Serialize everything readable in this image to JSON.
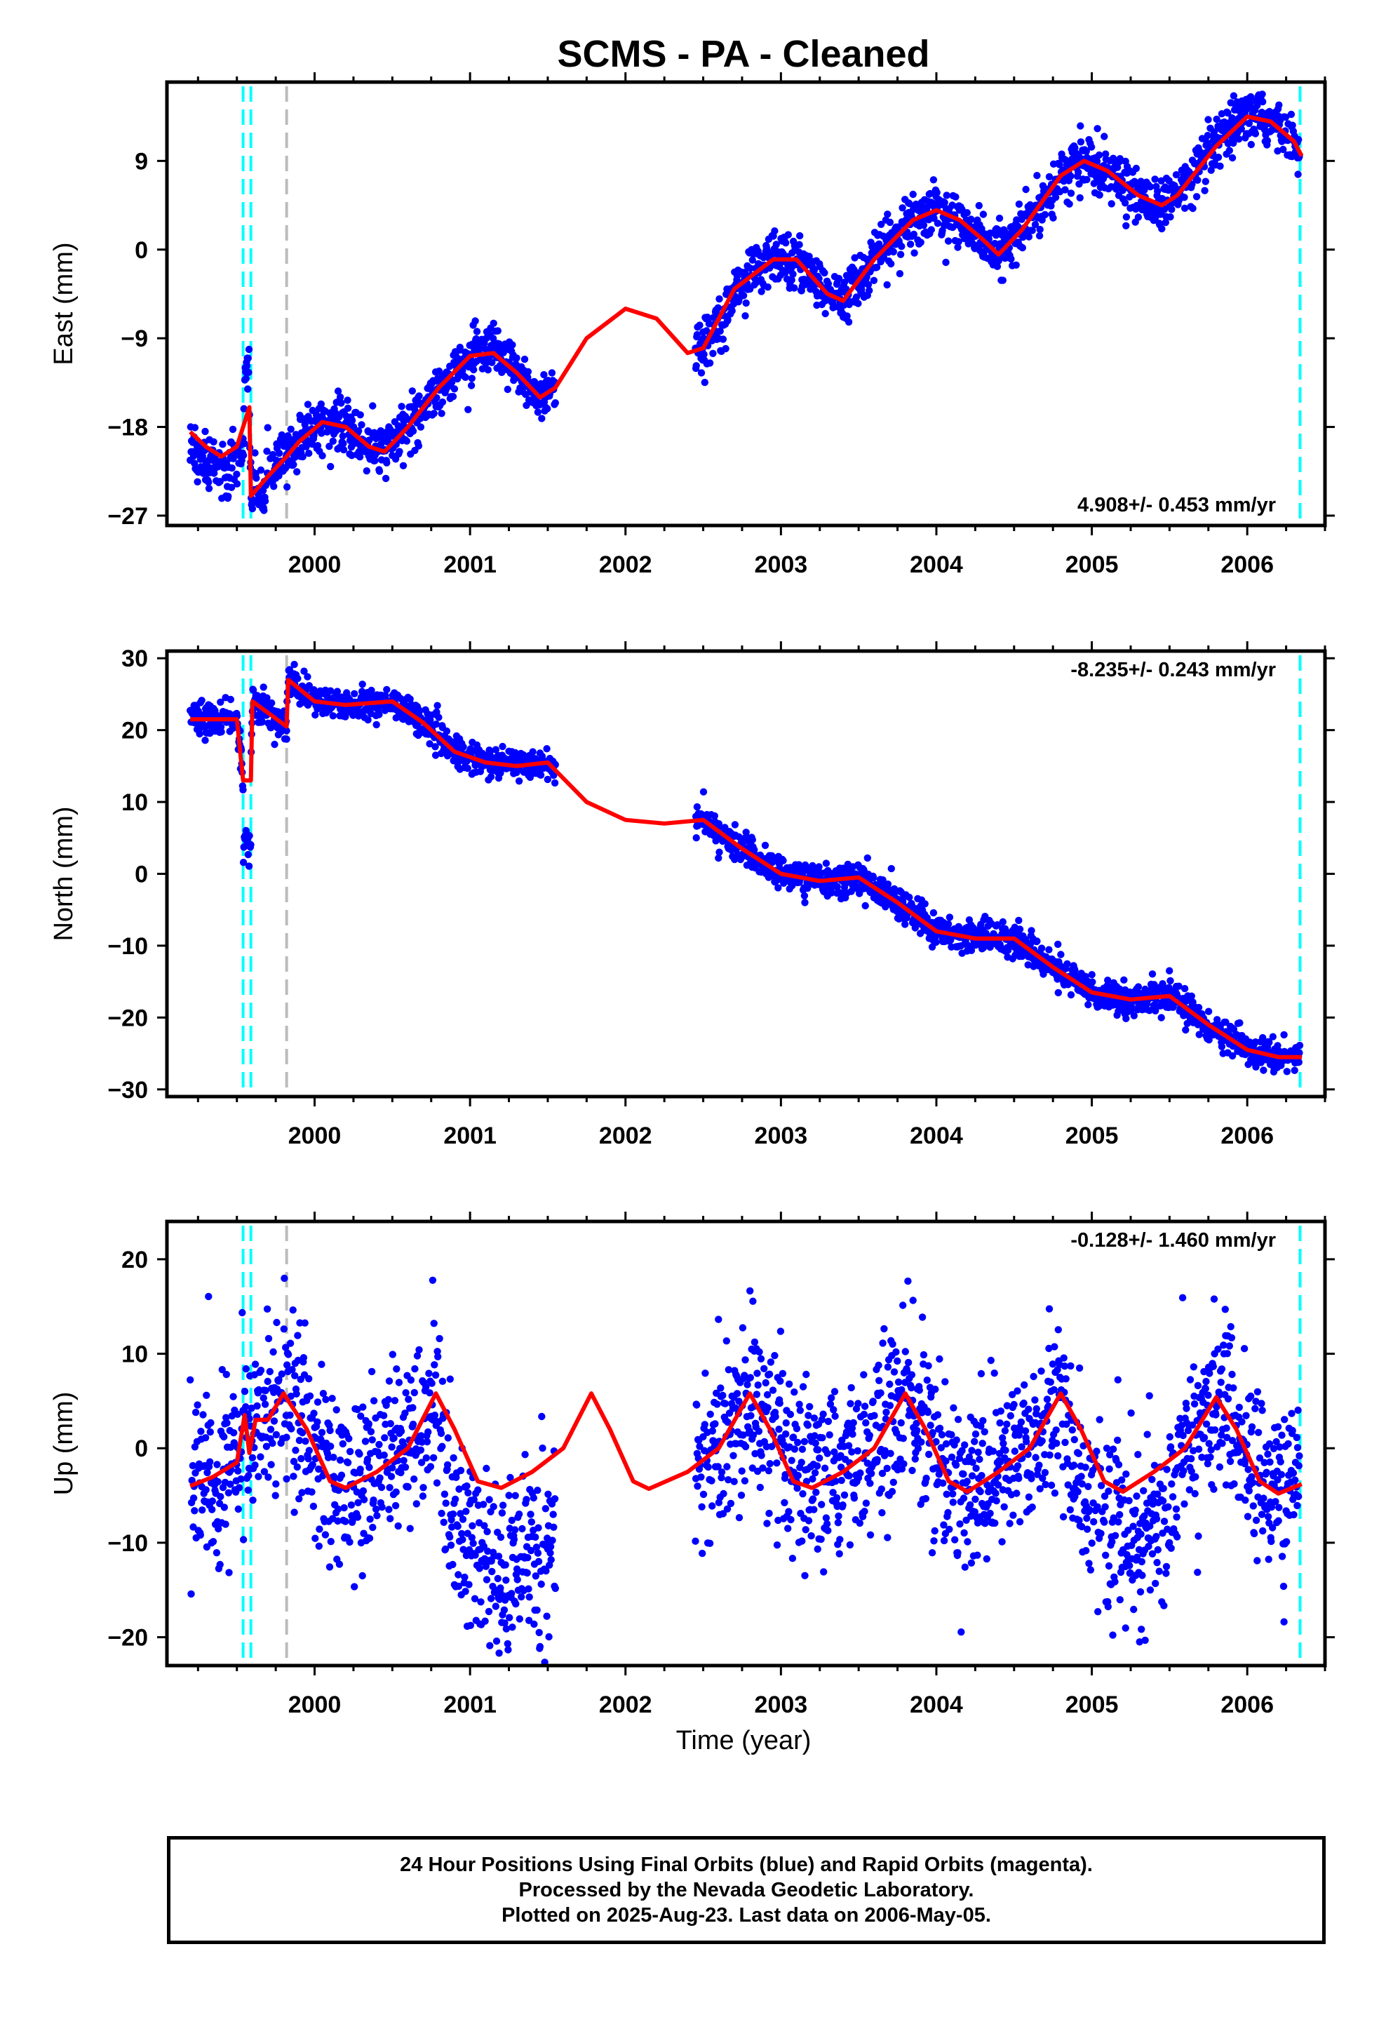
{
  "title": "SCMS  - PA - Cleaned",
  "xlabel": "Time (year)",
  "footer": {
    "line1": "24 Hour Positions Using Final Orbits (blue) and Rapid Orbits (magenta).",
    "line2": "Processed by the Nevada Geodetic Laboratory.",
    "line3": "Plotted on 2025-Aug-23. Last data on 2006-May-05."
  },
  "colors": {
    "points": "#0000ff",
    "model": "#ff0000",
    "equipment_change": "#00ffff",
    "other_event": "#bbbbbb",
    "frame": "#000000"
  },
  "chart_data": [
    {
      "type": "scatter",
      "ylabel": "East (mm)",
      "rate_label": "4.908+/- 0.453 mm/yr",
      "xlim": [
        1999.05,
        2006.5
      ],
      "ylim": [
        -28,
        17
      ],
      "x_ticks": [
        2000,
        2001,
        2002,
        2003,
        2004,
        2005,
        2006
      ],
      "y_ticks": [
        -27,
        -18,
        -9,
        0,
        9
      ],
      "data_coverage": [
        [
          1999.2,
          1999.82
        ],
        [
          1999.82,
          2001.55
        ],
        [
          2002.45,
          2006.34
        ]
      ],
      "model_line": [
        [
          1999.2,
          -18.5
        ],
        [
          1999.3,
          -20
        ],
        [
          1999.4,
          -21
        ],
        [
          1999.5,
          -20
        ],
        [
          1999.58,
          -16
        ],
        [
          1999.59,
          -25
        ],
        [
          1999.7,
          -23
        ],
        [
          1999.82,
          -21
        ],
        [
          1999.9,
          -19.5
        ],
        [
          2000.05,
          -17.5
        ],
        [
          2000.2,
          -18
        ],
        [
          2000.35,
          -20
        ],
        [
          2000.45,
          -20.5
        ],
        [
          2000.6,
          -18
        ],
        [
          2000.8,
          -14
        ],
        [
          2001.0,
          -10.8
        ],
        [
          2001.15,
          -10.5
        ],
        [
          2001.3,
          -12.5
        ],
        [
          2001.45,
          -15
        ],
        [
          2001.55,
          -14
        ],
        [
          2001.75,
          -9
        ],
        [
          2002.0,
          -6
        ],
        [
          2002.2,
          -7
        ],
        [
          2002.4,
          -10.5
        ],
        [
          2002.5,
          -10
        ],
        [
          2002.7,
          -4
        ],
        [
          2002.95,
          -1
        ],
        [
          2003.1,
          -1
        ],
        [
          2003.3,
          -4.5
        ],
        [
          2003.4,
          -5.2
        ],
        [
          2003.6,
          -1
        ],
        [
          2003.85,
          3
        ],
        [
          2004.0,
          4
        ],
        [
          2004.15,
          3
        ],
        [
          2004.3,
          1
        ],
        [
          2004.4,
          -0.5
        ],
        [
          2004.55,
          2
        ],
        [
          2004.8,
          7.5
        ],
        [
          2004.95,
          9
        ],
        [
          2005.1,
          8
        ],
        [
          2005.3,
          5.5
        ],
        [
          2005.45,
          4.5
        ],
        [
          2005.55,
          5.5
        ],
        [
          2005.8,
          10.5
        ],
        [
          2006.0,
          13.5
        ],
        [
          2006.15,
          13
        ],
        [
          2006.3,
          11
        ],
        [
          2006.35,
          9.5
        ]
      ],
      "seasonal": {
        "amplitude": 3.0,
        "noise": 1.3,
        "offsets": [
          [
            1999.2,
            1999.55,
            -1.5,
            0.6
          ],
          [
            1999.55,
            1999.58,
            4.5,
            0.3
          ]
        ]
      },
      "trend": {
        "rate_mm_per_yr": 4.908,
        "x0": 2002.8,
        "y0": -2.5
      },
      "events": [
        {
          "x": 1999.54,
          "kind": "equipment"
        },
        {
          "x": 1999.59,
          "kind": "equipment"
        },
        {
          "x": 1999.82,
          "kind": "other"
        },
        {
          "x": 2006.34,
          "kind": "equipment"
        }
      ]
    },
    {
      "type": "scatter",
      "ylabel": "North (mm)",
      "rate_label": "-8.235+/- 0.243 mm/yr",
      "xlim": [
        1999.05,
        2006.5
      ],
      "ylim": [
        -31,
        31
      ],
      "x_ticks": [
        2000,
        2001,
        2002,
        2003,
        2004,
        2005,
        2006
      ],
      "y_ticks": [
        -30,
        -20,
        -10,
        0,
        10,
        20,
        30
      ],
      "data_coverage": [
        [
          1999.2,
          1999.82
        ],
        [
          1999.82,
          2001.55
        ],
        [
          2002.45,
          2006.34
        ]
      ],
      "model_line": [
        [
          1999.2,
          21.5
        ],
        [
          1999.35,
          21.5
        ],
        [
          1999.5,
          21.5
        ],
        [
          1999.54,
          13
        ],
        [
          1999.59,
          13
        ],
        [
          1999.6,
          24
        ],
        [
          1999.82,
          20.5
        ],
        [
          1999.83,
          27
        ],
        [
          2000.0,
          24
        ],
        [
          2000.2,
          23.5
        ],
        [
          2000.5,
          24
        ],
        [
          2000.7,
          21
        ],
        [
          2000.9,
          17
        ],
        [
          2001.1,
          15.5
        ],
        [
          2001.3,
          15
        ],
        [
          2001.5,
          15.5
        ],
        [
          2001.75,
          10
        ],
        [
          2002.0,
          7.5
        ],
        [
          2002.25,
          7
        ],
        [
          2002.5,
          7.5
        ],
        [
          2002.75,
          3.5
        ],
        [
          2003.0,
          0
        ],
        [
          2003.25,
          -1
        ],
        [
          2003.5,
          -0.5
        ],
        [
          2003.75,
          -4
        ],
        [
          2004.0,
          -8
        ],
        [
          2004.25,
          -9
        ],
        [
          2004.5,
          -9
        ],
        [
          2004.75,
          -13
        ],
        [
          2005.0,
          -16.5
        ],
        [
          2005.25,
          -17.5
        ],
        [
          2005.5,
          -17
        ],
        [
          2005.75,
          -21
        ],
        [
          2006.0,
          -24.5
        ],
        [
          2006.2,
          -25.5
        ],
        [
          2006.35,
          -25.5
        ]
      ],
      "seasonal": {
        "amplitude": 1.5,
        "noise": 1.1,
        "offsets": [
          [
            1999.54,
            1999.59,
            -9,
            1.0
          ]
        ]
      },
      "trend": {
        "rate_mm_per_yr": -8.235,
        "x0": 2002.8,
        "y0": 3
      },
      "events": [
        {
          "x": 1999.54,
          "kind": "equipment"
        },
        {
          "x": 1999.59,
          "kind": "equipment"
        },
        {
          "x": 1999.82,
          "kind": "other"
        },
        {
          "x": 2006.34,
          "kind": "equipment"
        }
      ]
    },
    {
      "type": "scatter",
      "ylabel": "Up (mm)",
      "rate_label": "-0.128+/- 1.460 mm/yr",
      "xlim": [
        1999.05,
        2006.5
      ],
      "ylim": [
        -23,
        24
      ],
      "x_ticks": [
        2000,
        2001,
        2002,
        2003,
        2004,
        2005,
        2006
      ],
      "y_ticks": [
        -20,
        -10,
        0,
        10,
        20
      ],
      "data_coverage": [
        [
          1999.2,
          1999.82
        ],
        [
          1999.82,
          2001.55
        ],
        [
          2002.45,
          2006.34
        ]
      ],
      "model_line": [
        [
          1999.2,
          -4
        ],
        [
          1999.35,
          -3
        ],
        [
          1999.5,
          -1.5
        ],
        [
          1999.55,
          3.5
        ],
        [
          1999.58,
          -0.5
        ],
        [
          1999.62,
          3
        ],
        [
          1999.7,
          3
        ],
        [
          1999.8,
          5.8
        ],
        [
          1999.95,
          2
        ],
        [
          2000.1,
          -3.5
        ],
        [
          2000.2,
          -4.2
        ],
        [
          2000.4,
          -2.5
        ],
        [
          2000.6,
          0
        ],
        [
          2000.78,
          5.8
        ],
        [
          2000.9,
          2
        ],
        [
          2001.05,
          -3.5
        ],
        [
          2001.2,
          -4.2
        ],
        [
          2001.4,
          -2.5
        ],
        [
          2001.6,
          0
        ],
        [
          2001.78,
          5.8
        ],
        [
          2001.9,
          2
        ],
        [
          2002.05,
          -3.5
        ],
        [
          2002.15,
          -4.3
        ],
        [
          2002.4,
          -2.5
        ],
        [
          2002.6,
          0
        ],
        [
          2002.8,
          5.8
        ],
        [
          2002.93,
          2
        ],
        [
          2003.08,
          -3.5
        ],
        [
          2003.2,
          -4.2
        ],
        [
          2003.4,
          -2.5
        ],
        [
          2003.6,
          0
        ],
        [
          2003.8,
          5.8
        ],
        [
          2003.93,
          2
        ],
        [
          2004.08,
          -3.5
        ],
        [
          2004.2,
          -4.6
        ],
        [
          2004.4,
          -2.5
        ],
        [
          2004.6,
          0
        ],
        [
          2004.8,
          5.8
        ],
        [
          2004.93,
          2
        ],
        [
          2005.08,
          -3.5
        ],
        [
          2005.2,
          -4.6
        ],
        [
          2005.4,
          -2.5
        ],
        [
          2005.6,
          0
        ],
        [
          2005.8,
          5.4
        ],
        [
          2005.93,
          2
        ],
        [
          2006.08,
          -3.5
        ],
        [
          2006.2,
          -4.8
        ],
        [
          2006.35,
          -3.8
        ]
      ],
      "seasonal": {
        "amplitude": 5.0,
        "noise": 4.5,
        "offsets": [
          [
            2000.83,
            2001.55,
            -9,
            2.0
          ],
          [
            2004.83,
            2005.55,
            -5,
            1.5
          ]
        ]
      },
      "trend": {
        "rate_mm_per_yr": -0.128,
        "x0": 2002.8,
        "y0": 0
      },
      "events": [
        {
          "x": 1999.54,
          "kind": "equipment"
        },
        {
          "x": 1999.59,
          "kind": "equipment"
        },
        {
          "x": 1999.82,
          "kind": "other"
        },
        {
          "x": 2006.34,
          "kind": "equipment"
        }
      ]
    }
  ]
}
